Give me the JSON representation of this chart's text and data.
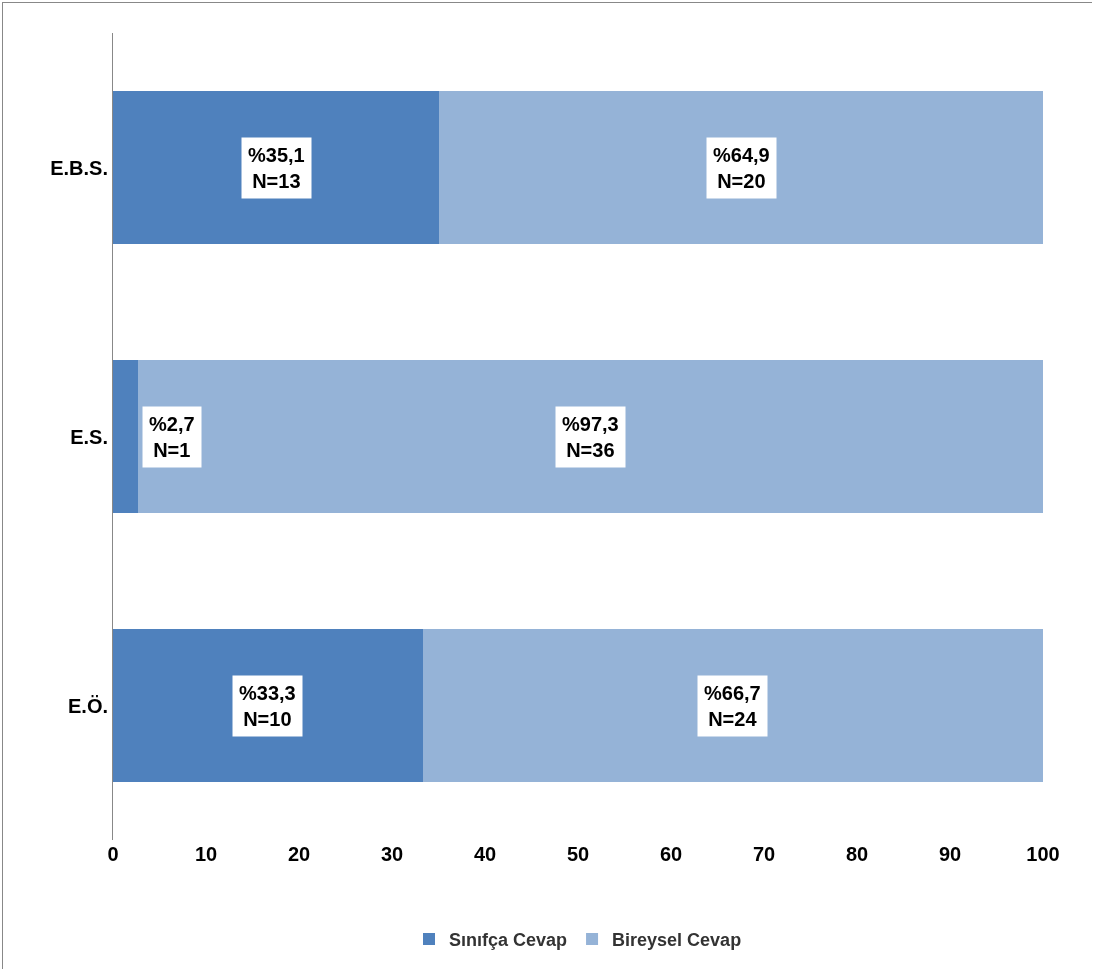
{
  "chart_data": {
    "type": "bar",
    "orientation": "horizontal",
    "stacked": true,
    "categories": [
      "E.B.S.",
      "E.S.",
      "E.Ö."
    ],
    "series": [
      {
        "name": "Sınıfça Cevap",
        "color": "#4f81bd",
        "values": [
          35.1,
          2.7,
          33.3
        ],
        "value_labels": [
          "%35,1\nN=13",
          "%2,7\nN=1",
          "%33,3\nN=10"
        ]
      },
      {
        "name": "Bireysel Cevap",
        "color": "#95b3d7",
        "values": [
          64.9,
          97.3,
          66.7
        ],
        "value_labels": [
          "%64,9\nN=20",
          "%97,3\nN=36",
          "%66,7\nN=24"
        ]
      }
    ],
    "xlim": [
      0,
      100
    ],
    "xticks": [
      0,
      10,
      20,
      30,
      40,
      50,
      60,
      70,
      80,
      90,
      100
    ],
    "grid": false,
    "legend": "bottom"
  }
}
